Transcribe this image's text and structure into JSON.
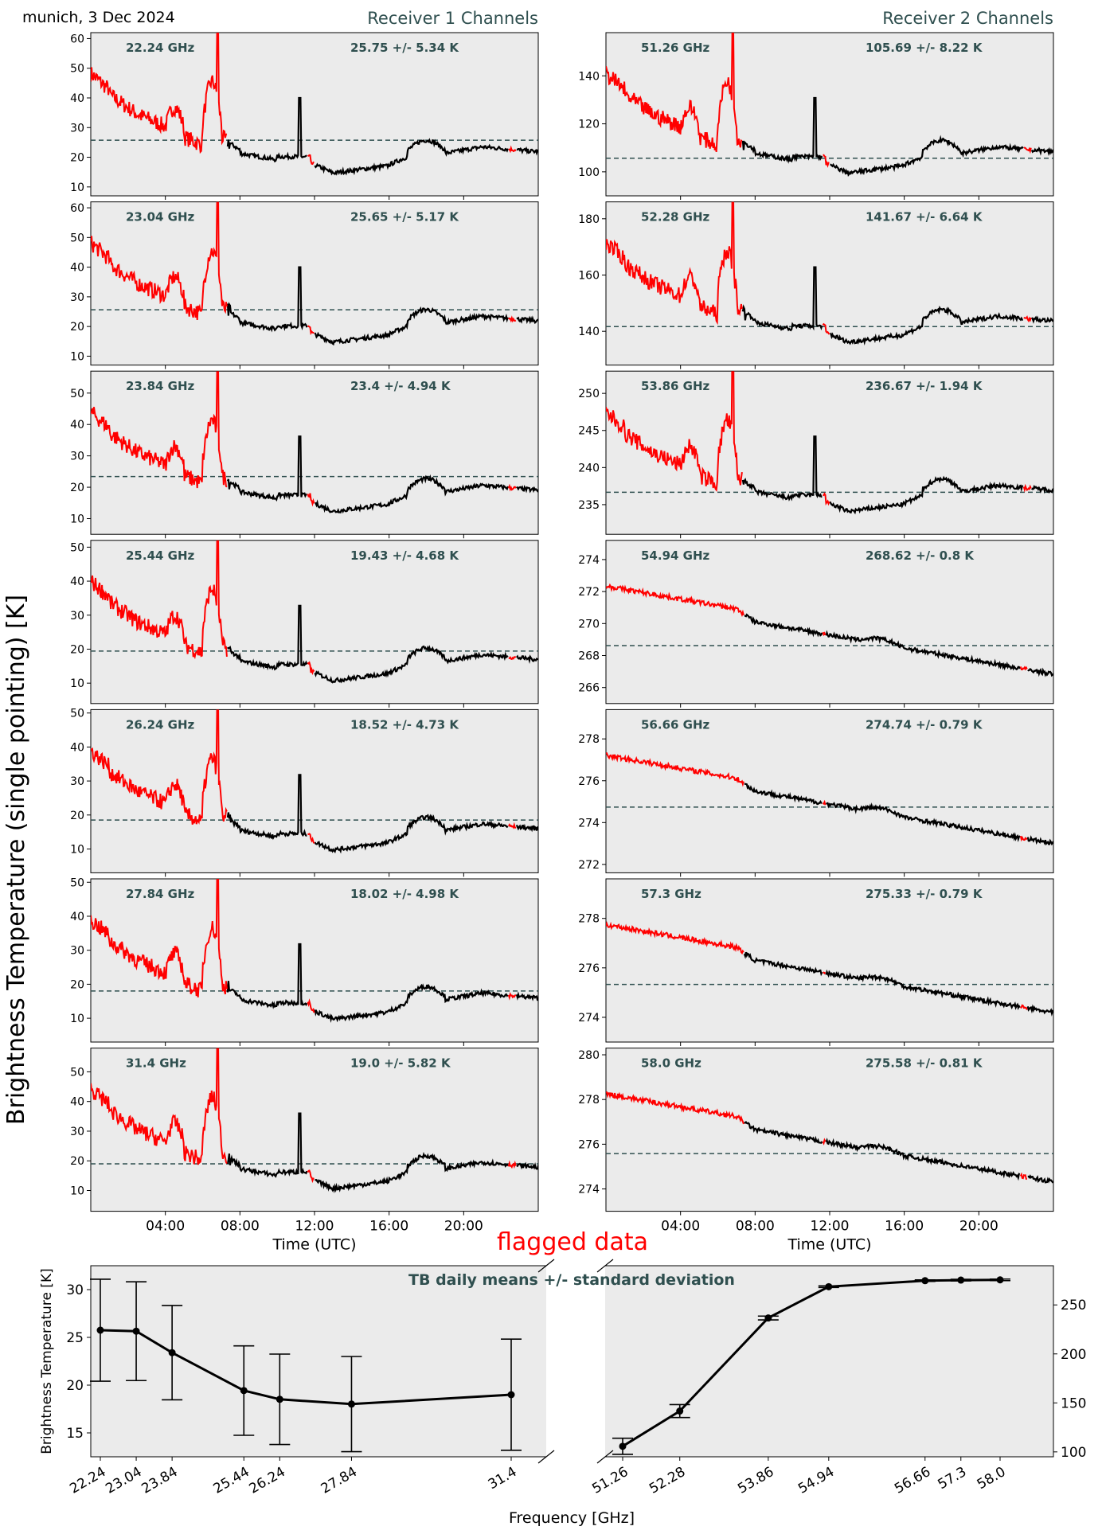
{
  "header": {
    "site_date": "munich, 3 Dec 2024",
    "receiver1_title": "Receiver 1 Channels",
    "receiver2_title": "Receiver 2 Channels",
    "ylabel_global": "Brightness Temperature (single pointing) [K]",
    "flagged_label": "flagged data"
  },
  "colors": {
    "panel_bg": "#ebebeb",
    "good_data": "#000000",
    "flagged_data": "#ff0000",
    "annotation": "#2f4f4f",
    "mean_line": "#2f4f4f"
  },
  "chart_data": [
    {
      "type": "line",
      "receiver": 1,
      "xlabel": "Time (UTC)",
      "xticks": [
        "04:00",
        "08:00",
        "12:00",
        "16:00",
        "20:00"
      ],
      "xlim_hours": [
        0,
        24
      ],
      "panels": [
        {
          "freq_label": "22.24 GHz",
          "stat_label": "25.75 +/- 5.34 K",
          "mean": 25.75,
          "ylim": [
            7,
            62
          ],
          "yticks": [
            10,
            20,
            30,
            40,
            50,
            60
          ]
        },
        {
          "freq_label": "23.04 GHz",
          "stat_label": "25.65 +/- 5.17 K",
          "mean": 25.65,
          "ylim": [
            7,
            62
          ],
          "yticks": [
            10,
            20,
            30,
            40,
            50,
            60
          ]
        },
        {
          "freq_label": "23.84 GHz",
          "stat_label": "23.4 +/- 4.94 K",
          "mean": 23.4,
          "ylim": [
            5,
            57
          ],
          "yticks": [
            10,
            20,
            30,
            40,
            50
          ]
        },
        {
          "freq_label": "25.44 GHz",
          "stat_label": "19.43 +/- 4.68 K",
          "mean": 19.43,
          "ylim": [
            4,
            52
          ],
          "yticks": [
            10,
            20,
            30,
            40,
            50
          ]
        },
        {
          "freq_label": "26.24 GHz",
          "stat_label": "18.52 +/- 4.73 K",
          "mean": 18.52,
          "ylim": [
            3,
            51
          ],
          "yticks": [
            10,
            20,
            30,
            40,
            50
          ]
        },
        {
          "freq_label": "27.84 GHz",
          "stat_label": "18.02 +/- 4.98 K",
          "mean": 18.02,
          "ylim": [
            3,
            51
          ],
          "yticks": [
            10,
            20,
            30,
            40,
            50
          ]
        },
        {
          "freq_label": "31.4 GHz",
          "stat_label": "19.0 +/- 5.82 K",
          "mean": 19.0,
          "ylim": [
            3,
            58
          ],
          "yticks": [
            10,
            20,
            30,
            40,
            50
          ]
        }
      ]
    },
    {
      "type": "line",
      "receiver": 2,
      "xlabel": "Time (UTC)",
      "xticks": [
        "04:00",
        "08:00",
        "12:00",
        "16:00",
        "20:00"
      ],
      "xlim_hours": [
        0,
        24
      ],
      "panels": [
        {
          "freq_label": "51.26 GHz",
          "stat_label": "105.69 +/- 8.22 K",
          "mean": 105.69,
          "ylim": [
            90,
            158
          ],
          "yticks": [
            100,
            120,
            140
          ]
        },
        {
          "freq_label": "52.28 GHz",
          "stat_label": "141.67 +/- 6.64 K",
          "mean": 141.67,
          "ylim": [
            128,
            186
          ],
          "yticks": [
            140,
            160,
            180
          ]
        },
        {
          "freq_label": "53.86 GHz",
          "stat_label": "236.67 +/- 1.94 K",
          "mean": 236.67,
          "ylim": [
            231,
            253
          ],
          "yticks": [
            235,
            240,
            245,
            250
          ]
        },
        {
          "freq_label": "54.94 GHz",
          "stat_label": "268.62 +/- 0.8 K",
          "mean": 268.62,
          "ylim": [
            265,
            275.2
          ],
          "yticks": [
            266,
            268,
            270,
            272,
            274
          ]
        },
        {
          "freq_label": "56.66 GHz",
          "stat_label": "274.74 +/- 0.79 K",
          "mean": 274.74,
          "ylim": [
            271.6,
            279.4
          ],
          "yticks": [
            272,
            274,
            276,
            278
          ]
        },
        {
          "freq_label": "57.3 GHz",
          "stat_label": "275.33 +/- 0.79 K",
          "mean": 275.33,
          "ylim": [
            273,
            279.6
          ],
          "yticks": [
            274,
            276,
            278
          ]
        },
        {
          "freq_label": "58.0 GHz",
          "stat_label": "275.58 +/- 0.81 K",
          "mean": 275.58,
          "ylim": [
            273,
            280.3
          ],
          "yticks": [
            274,
            276,
            278,
            280
          ]
        }
      ]
    },
    {
      "type": "line",
      "title": "TB daily means +/- standard deviation",
      "xlabel": "Frequency [GHz]",
      "ylabel": "Brightness Temperature [K]",
      "left_ylim": [
        12.5,
        32.5
      ],
      "left_yticks": [
        15,
        20,
        25,
        30
      ],
      "right_ylim": [
        95,
        290
      ],
      "right_yticks": [
        100,
        150,
        200,
        250
      ],
      "series": [
        {
          "x": [
            22.24,
            23.04,
            23.84,
            25.44,
            26.24,
            27.84,
            31.4
          ],
          "x_labels": [
            "22.24",
            "23.04",
            "23.84",
            "25.44",
            "26.24",
            "27.84",
            "31.4"
          ],
          "values": [
            25.75,
            25.65,
            23.4,
            19.43,
            18.52,
            18.02,
            19.0
          ],
          "std": [
            5.34,
            5.17,
            4.94,
            4.68,
            4.73,
            4.98,
            5.82
          ]
        },
        {
          "x": [
            51.26,
            52.28,
            53.86,
            54.94,
            56.66,
            57.3,
            58.0
          ],
          "x_labels": [
            "51.26",
            "52.28",
            "53.86",
            "54.94",
            "56.66",
            "57.3",
            "58.0"
          ],
          "values": [
            105.69,
            141.67,
            236.67,
            268.62,
            274.74,
            275.33,
            275.58
          ],
          "std": [
            8.22,
            6.64,
            1.94,
            0.8,
            0.79,
            0.79,
            0.81
          ]
        }
      ]
    }
  ]
}
